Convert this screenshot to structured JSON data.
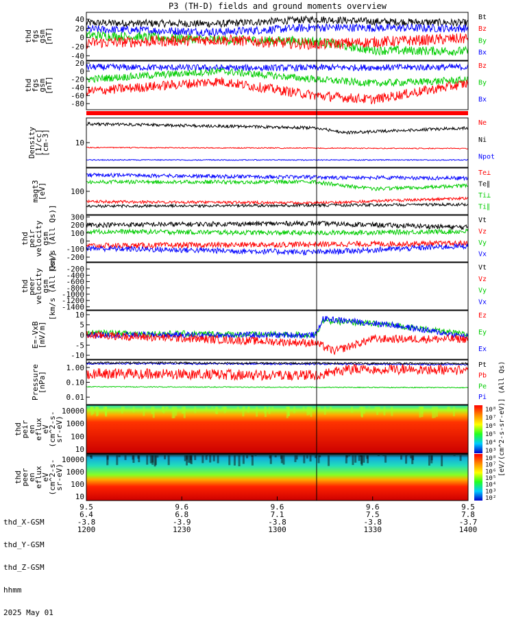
{
  "title": "P3 (TH-D) fields and ground moments overview",
  "footer": {
    "rows": [
      {
        "label": "thd_X-GSM",
        "values": [
          "9.5",
          "9.6",
          "9.6",
          "9.6",
          "9.5"
        ]
      },
      {
        "label": "thd_Y-GSM",
        "values": [
          "6.4",
          "6.8",
          "7.1",
          "7.5",
          "7.8"
        ]
      },
      {
        "label": "thd_Z-GSM",
        "values": [
          "-3.8",
          "-3.9",
          "-3.8",
          "-3.8",
          "-3.7"
        ]
      },
      {
        "label": "hhmm",
        "values": [
          "1200",
          "1230",
          "1300",
          "1330",
          "1400"
        ]
      }
    ],
    "date": "2025 May 01"
  },
  "colors": {
    "Bt": "#000000",
    "Bz": "#ff0000",
    "By": "#00dd00",
    "Bx": "#0000ff"
  },
  "chart_data": [
    {
      "type": "line",
      "ylabel": [
        "thd",
        "fgs",
        "gsm",
        "[nT]"
      ],
      "ylim": [
        -50,
        55
      ],
      "ticks": [
        "40",
        "20",
        "0",
        "-20",
        "-40"
      ],
      "tick_values": [
        40,
        20,
        0,
        -20,
        -40
      ],
      "legend": [
        {
          "name": "Bt",
          "color": "#000000"
        },
        {
          "name": "Bz",
          "color": "#ff0000"
        },
        {
          "name": "By",
          "color": "#00cc00"
        },
        {
          "name": "Bx",
          "color": "#0000ff"
        }
      ],
      "series": [
        {
          "name": "Bt",
          "color": "#000000",
          "levels": [
            [
              0,
              32
            ],
            [
              0.35,
              30
            ],
            [
              0.6,
              40
            ],
            [
              0.75,
              35
            ],
            [
              1,
              32
            ]
          ],
          "noise": 8
        },
        {
          "name": "Bx",
          "color": "#0000ff",
          "levels": [
            [
              0,
              18
            ],
            [
              0.35,
              12
            ],
            [
              0.6,
              22
            ],
            [
              1,
              20
            ]
          ],
          "noise": 9
        },
        {
          "name": "By",
          "color": "#00cc00",
          "levels": [
            [
              0,
              5
            ],
            [
              0.35,
              -5
            ],
            [
              0.6,
              -8
            ],
            [
              0.75,
              -28
            ],
            [
              1,
              -30
            ]
          ],
          "noise": 10
        },
        {
          "name": "Bz",
          "color": "#ff0000",
          "levels": [
            [
              0,
              -12
            ],
            [
              0.35,
              -5
            ],
            [
              0.6,
              -15
            ],
            [
              0.75,
              -10
            ],
            [
              1,
              -2
            ]
          ],
          "noise": 12
        }
      ]
    },
    {
      "type": "line",
      "ylabel": [
        "thd",
        "fgs",
        "gsm",
        "[nT]"
      ],
      "ylim": [
        -95,
        25
      ],
      "ticks": [
        "20",
        "0",
        "-20",
        "-40",
        "-60",
        "-80"
      ],
      "tick_values": [
        20,
        0,
        -20,
        -40,
        -60,
        -80
      ],
      "legend": [
        {
          "name": "Bz",
          "color": "#ff0000"
        },
        {
          "name": "By",
          "color": "#00cc00"
        },
        {
          "name": "Bx",
          "color": "#0000ff"
        }
      ],
      "series": [
        {
          "name": "Bx",
          "color": "#0000ff",
          "levels": [
            [
              0,
              10
            ],
            [
              0.4,
              8
            ],
            [
              1,
              10
            ]
          ],
          "noise": 8
        },
        {
          "name": "By",
          "color": "#00cc00",
          "levels": [
            [
              0,
              -20
            ],
            [
              0.35,
              0
            ],
            [
              0.6,
              -20
            ],
            [
              0.75,
              -30
            ],
            [
              1,
              -22
            ]
          ],
          "noise": 9
        },
        {
          "name": "Bz",
          "color": "#ff0000",
          "levels": [
            [
              0,
              -50
            ],
            [
              0.35,
              -25
            ],
            [
              0.6,
              -60
            ],
            [
              0.75,
              -70
            ],
            [
              1,
              -30
            ]
          ],
          "noise": 12
        }
      ]
    },
    {
      "type": "line",
      "ylabel": [
        "Density",
        "[1/cc]",
        "[cm-3]"
      ],
      "ylim": "log",
      "ticks": [
        "10"
      ],
      "legend": [
        {
          "name": "Ne",
          "color": "#ff0000"
        },
        {
          "name": "Ni",
          "color": "#000000"
        },
        {
          "name": "Npot",
          "color": "#0000ff"
        }
      ],
      "series": [
        {
          "name": "Ni",
          "color": "#000000",
          "levels": [
            [
              0,
              0.12
            ],
            [
              0.6,
              0.2
            ],
            [
              0.68,
              0.3
            ],
            [
              1,
              0.2
            ]
          ],
          "noise": 0.03
        },
        {
          "name": "Ne",
          "color": "#ff0000",
          "levels": [
            [
              0,
              0.6
            ],
            [
              1,
              0.62
            ]
          ],
          "noise": 0.01
        },
        {
          "name": "Npot",
          "color": "#0000ff",
          "levels": [
            [
              0,
              0.85
            ],
            [
              1,
              0.85
            ]
          ],
          "noise": 0.01
        }
      ]
    },
    {
      "type": "line",
      "ylabel": [
        "magt3",
        "[eV]"
      ],
      "ylim": "log",
      "ticks": [
        "100"
      ],
      "legend": [
        {
          "name": "Te⊥",
          "color": "#ff0000"
        },
        {
          "name": "Te∥",
          "color": "#000000"
        },
        {
          "name": "Ti⊥",
          "color": "#00cc00"
        },
        {
          "name": "Ti∥",
          "color": "#00cc00"
        }
      ],
      "series": [
        {
          "name": "Ti⊥",
          "color": "#0000ff",
          "levels": [
            [
              0,
              0.15
            ],
            [
              0.6,
              0.2
            ],
            [
              1,
              0.22
            ]
          ],
          "noise": 0.04
        },
        {
          "name": "Ti∥",
          "color": "#00cc00",
          "levels": [
            [
              0,
              0.3
            ],
            [
              0.6,
              0.3
            ],
            [
              0.75,
              0.45
            ],
            [
              1,
              0.38
            ]
          ],
          "noise": 0.04
        },
        {
          "name": "Te⊥",
          "color": "#ff0000",
          "levels": [
            [
              0,
              0.72
            ],
            [
              0.6,
              0.75
            ],
            [
              1,
              0.65
            ]
          ],
          "noise": 0.03
        },
        {
          "name": "Te∥",
          "color": "#000000",
          "levels": [
            [
              0,
              0.82
            ],
            [
              0.6,
              0.8
            ],
            [
              1,
              0.78
            ]
          ],
          "noise": 0.03
        }
      ]
    },
    {
      "type": "line",
      "ylabel": [
        "thd",
        "peir",
        "velocity",
        "gsm",
        "[km/s (All Qs)]"
      ],
      "ylim": [
        -260,
        320
      ],
      "ticks": [
        "300",
        "200",
        "100",
        "0",
        "-100",
        "-200"
      ],
      "tick_values": [
        300,
        200,
        100,
        0,
        -100,
        -200
      ],
      "legend": [
        {
          "name": "Vt",
          "color": "#000000"
        },
        {
          "name": "Vz",
          "color": "#ff0000"
        },
        {
          "name": "Vy",
          "color": "#00cc00"
        },
        {
          "name": "Vx",
          "color": "#0000ff"
        }
      ],
      "series": [
        {
          "name": "Vt",
          "color": "#000000",
          "levels": [
            [
              0,
              200
            ],
            [
              0.6,
              220
            ],
            [
              1,
              170
            ]
          ],
          "noise": 30
        },
        {
          "name": "Vy",
          "color": "#00cc00",
          "levels": [
            [
              0,
              120
            ],
            [
              0.6,
              100
            ],
            [
              1,
              120
            ]
          ],
          "noise": 30
        },
        {
          "name": "Vz",
          "color": "#ff0000",
          "levels": [
            [
              0,
              -60
            ],
            [
              0.6,
              -40
            ],
            [
              1,
              -30
            ]
          ],
          "noise": 35
        },
        {
          "name": "Vx",
          "color": "#0000ff",
          "levels": [
            [
              0,
              -90
            ],
            [
              0.6,
              -140
            ],
            [
              1,
              -60
            ]
          ],
          "noise": 35
        }
      ]
    },
    {
      "type": "line",
      "ylabel": [
        "thd",
        "peer",
        "velocity",
        "gsm",
        "[km/s (All Qs)]"
      ],
      "ylim": [
        -1500,
        0
      ],
      "ticks": [
        "-200",
        "-400",
        "-600",
        "-800",
        "-1000",
        "-1200",
        "-1400"
      ],
      "tick_values": [
        -200,
        -400,
        -600,
        -800,
        -1000,
        -1200,
        -1400
      ],
      "legend": [
        {
          "name": "Vt",
          "color": "#000000"
        },
        {
          "name": "Vz",
          "color": "#ff0000"
        },
        {
          "name": "Vy",
          "color": "#00cc00"
        },
        {
          "name": "Vx",
          "color": "#0000ff"
        }
      ],
      "series": []
    },
    {
      "type": "line",
      "ylabel": [
        "E=-VxB",
        "[mV/m]"
      ],
      "ylim": [
        -12,
        12
      ],
      "ticks": [
        "10",
        "5",
        "0",
        "-5",
        "-10"
      ],
      "tick_values": [
        10,
        5,
        0,
        -5,
        -10
      ],
      "legend": [
        {
          "name": "Ez",
          "color": "#ff0000"
        },
        {
          "name": "Ey",
          "color": "#00cc00"
        },
        {
          "name": "Ex",
          "color": "#0000ff"
        }
      ],
      "series": [
        {
          "name": "Ey",
          "color": "#00cc00",
          "levels": [
            [
              0,
              1
            ],
            [
              0.6,
              0
            ],
            [
              0.62,
              7
            ],
            [
              0.8,
              5
            ],
            [
              1,
              0
            ]
          ],
          "noise": 1.5
        },
        {
          "name": "Ex",
          "color": "#0000ff",
          "levels": [
            [
              0,
              0
            ],
            [
              0.6,
              0
            ],
            [
              0.62,
              8
            ],
            [
              0.8,
              5
            ],
            [
              1,
              -1
            ]
          ],
          "noise": 1.5
        },
        {
          "name": "Ez",
          "color": "#ff0000",
          "levels": [
            [
              0,
              0
            ],
            [
              0.3,
              -2
            ],
            [
              0.6,
              -4
            ],
            [
              0.65,
              -8
            ],
            [
              0.75,
              -2
            ],
            [
              1,
              -2
            ]
          ],
          "noise": 2
        }
      ]
    },
    {
      "type": "line",
      "ylabel": [
        "Pressure",
        "[nPa]"
      ],
      "ylim": "log",
      "ticks": [
        "1.00",
        "0.10",
        "0.01"
      ],
      "legend": [
        {
          "name": "Pt",
          "color": "#000000"
        },
        {
          "name": "Pb",
          "color": "#ff0000"
        },
        {
          "name": "Pe",
          "color": "#00cc00"
        },
        {
          "name": "Pi",
          "color": "#0000ff"
        }
      ],
      "series": [
        {
          "name": "Pi",
          "color": "#0000ff",
          "levels": [
            [
              0,
              0.08
            ],
            [
              1,
              0.1
            ]
          ],
          "noise": 0.02
        },
        {
          "name": "Pt",
          "color": "#000000",
          "levels": [
            [
              0,
              0.06
            ],
            [
              1,
              0.08
            ]
          ],
          "noise": 0.02
        },
        {
          "name": "Pb",
          "color": "#ff0000",
          "levels": [
            [
              0,
              0.3
            ],
            [
              0.6,
              0.35
            ],
            [
              0.7,
              0.2
            ],
            [
              1,
              0.22
            ]
          ],
          "noise": 0.12
        },
        {
          "name": "Pe",
          "color": "#00cc00",
          "levels": [
            [
              0,
              0.6
            ],
            [
              1,
              0.62
            ]
          ],
          "noise": 0.01
        }
      ]
    },
    {
      "type": "heatmap",
      "ylabel": [
        "thd",
        "peir",
        "en",
        "eflux",
        "eV",
        "(cm^2-s-",
        "sr-eV)"
      ],
      "ticks": [
        "10000",
        "1000",
        "100",
        "10"
      ],
      "colorbar": {
        "label": "[eV/(cm^2-s-sr-eV)] (All Qs)",
        "ticks": [
          "10⁸",
          "10⁷",
          "10⁶",
          "10⁵",
          "10⁴",
          "10³"
        ]
      }
    },
    {
      "type": "heatmap",
      "ylabel": [
        "thd",
        "peer",
        "en",
        "eflux",
        "eV",
        "(cm^2-s-",
        "sr-eV)"
      ],
      "ticks": [
        "10000",
        "1000",
        "100",
        "10"
      ],
      "colorbar": {
        "label": "[eV/(cm^2-s-sr-eV)] (All Qs)",
        "ticks": [
          "10⁸",
          "10⁷",
          "10⁶",
          "10⁵",
          "10⁴",
          "10³",
          "10²"
        ]
      }
    }
  ]
}
